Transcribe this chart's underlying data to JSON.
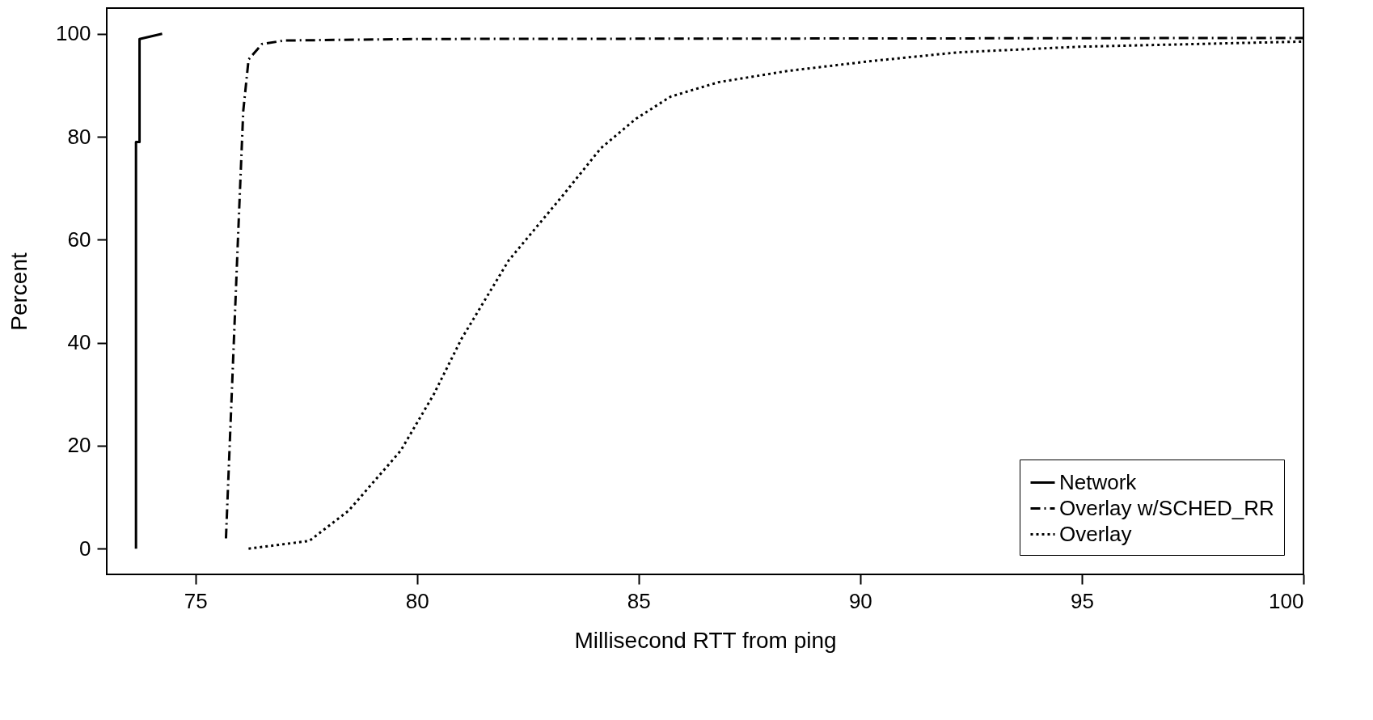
{
  "chart_data": {
    "type": "line",
    "xlabel": "Millisecond RTT from ping",
    "ylabel": "Percent",
    "xlim": [
      73,
      100
    ],
    "ylim": [
      -5,
      105
    ],
    "xticks": [
      75,
      80,
      85,
      90,
      95,
      100
    ],
    "yticks": [
      0,
      20,
      40,
      60,
      80,
      100
    ],
    "grid": false,
    "legend": "bottom right",
    "series": [
      {
        "name": "Network",
        "color": "#000000",
        "line_style": "solid",
        "x": [
          73.66,
          73.66,
          73.74,
          73.74,
          74.25
        ],
        "values": [
          0,
          79,
          79,
          99,
          100
        ]
      },
      {
        "name": "Overlay w/SCHED_RR",
        "color": "#000000",
        "line_style": "dashdot",
        "x": [
          75.69,
          75.96,
          76.08,
          76.2,
          76.5,
          77,
          80,
          100
        ],
        "values": [
          2,
          60,
          85,
          95,
          98,
          98.7,
          99,
          99.2
        ]
      },
      {
        "name": "Overlay",
        "color": "#000000",
        "line_style": "dotted",
        "x": [
          76.2,
          77.57,
          78.46,
          79.63,
          80.38,
          81,
          82.07,
          83.27,
          84.15,
          84.94,
          85.72,
          86.8,
          88.37,
          90.24,
          92.2,
          94.95,
          100
        ],
        "values": [
          0,
          1.5,
          7.4,
          19,
          30,
          40.7,
          56,
          68.4,
          77.8,
          83.5,
          87.8,
          90.6,
          92.8,
          94.7,
          96.4,
          97.5,
          98.5
        ]
      }
    ]
  }
}
